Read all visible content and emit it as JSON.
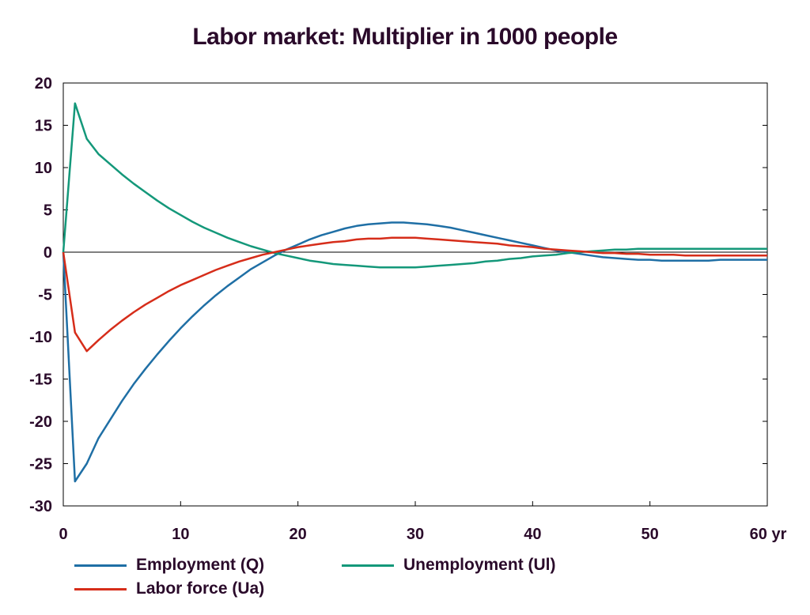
{
  "chart_data": {
    "type": "line",
    "title": "Labor market: Multiplier in 1000 people",
    "xlabel": "",
    "ylabel": "",
    "xlim": [
      0,
      60
    ],
    "ylim": [
      -30,
      20
    ],
    "x_ticks": [
      0,
      10,
      20,
      30,
      40,
      50,
      60
    ],
    "x_tick_labels": [
      "0",
      "10",
      "20",
      "30",
      "40",
      "50",
      "60 yr"
    ],
    "y_ticks": [
      20,
      15,
      10,
      5,
      0,
      -5,
      -10,
      -15,
      -20,
      -25,
      -30
    ],
    "y_tick_labels": [
      "20",
      "15",
      "10",
      "5",
      "0",
      "-5",
      "-10",
      "-15",
      "-20",
      "-25",
      "-30"
    ],
    "grid": false,
    "zero_line": true,
    "legend_position": "bottom",
    "series": [
      {
        "name": "Employment (Q)",
        "color": "#1f6fa5",
        "x": [
          0,
          1,
          2,
          3,
          4,
          5,
          6,
          7,
          8,
          9,
          10,
          11,
          12,
          13,
          14,
          15,
          16,
          17,
          18,
          19,
          20,
          21,
          22,
          23,
          24,
          25,
          26,
          27,
          28,
          29,
          30,
          31,
          32,
          33,
          34,
          35,
          36,
          37,
          38,
          39,
          40,
          41,
          42,
          43,
          44,
          45,
          46,
          47,
          48,
          49,
          50,
          51,
          52,
          53,
          54,
          55,
          56,
          57,
          58,
          59,
          60
        ],
        "values": [
          0,
          -27.1,
          -25.0,
          -22.0,
          -19.8,
          -17.6,
          -15.6,
          -13.8,
          -12.1,
          -10.5,
          -9.0,
          -7.6,
          -6.3,
          -5.1,
          -4.0,
          -3.0,
          -2.0,
          -1.2,
          -0.4,
          0.3,
          0.9,
          1.5,
          2.0,
          2.4,
          2.8,
          3.1,
          3.3,
          3.4,
          3.5,
          3.5,
          3.4,
          3.3,
          3.1,
          2.9,
          2.6,
          2.3,
          2.0,
          1.7,
          1.4,
          1.1,
          0.8,
          0.5,
          0.2,
          0.0,
          -0.2,
          -0.4,
          -0.6,
          -0.7,
          -0.8,
          -0.9,
          -0.9,
          -1.0,
          -1.0,
          -1.0,
          -1.0,
          -1.0,
          -0.9,
          -0.9,
          -0.9,
          -0.9,
          -0.9
        ]
      },
      {
        "name": "Unemployment (Ul)",
        "color": "#14987a",
        "x": [
          0,
          1,
          2,
          3,
          4,
          5,
          6,
          7,
          8,
          9,
          10,
          11,
          12,
          13,
          14,
          15,
          16,
          17,
          18,
          19,
          20,
          21,
          22,
          23,
          24,
          25,
          26,
          27,
          28,
          29,
          30,
          31,
          32,
          33,
          34,
          35,
          36,
          37,
          38,
          39,
          40,
          41,
          42,
          43,
          44,
          45,
          46,
          47,
          48,
          49,
          50,
          51,
          52,
          53,
          54,
          55,
          56,
          57,
          58,
          59,
          60
        ],
        "values": [
          0,
          17.6,
          13.4,
          11.6,
          10.4,
          9.2,
          8.1,
          7.1,
          6.1,
          5.2,
          4.4,
          3.6,
          2.9,
          2.3,
          1.7,
          1.2,
          0.7,
          0.3,
          -0.1,
          -0.4,
          -0.7,
          -1.0,
          -1.2,
          -1.4,
          -1.5,
          -1.6,
          -1.7,
          -1.8,
          -1.8,
          -1.8,
          -1.8,
          -1.7,
          -1.6,
          -1.5,
          -1.4,
          -1.3,
          -1.1,
          -1.0,
          -0.8,
          -0.7,
          -0.5,
          -0.4,
          -0.3,
          -0.1,
          0.0,
          0.1,
          0.2,
          0.3,
          0.3,
          0.4,
          0.4,
          0.4,
          0.4,
          0.4,
          0.4,
          0.4,
          0.4,
          0.4,
          0.4,
          0.4,
          0.4
        ]
      },
      {
        "name": "Labor force (Ua)",
        "color": "#d62d1a",
        "x": [
          0,
          1,
          2,
          3,
          4,
          5,
          6,
          7,
          8,
          9,
          10,
          11,
          12,
          13,
          14,
          15,
          16,
          17,
          18,
          19,
          20,
          21,
          22,
          23,
          24,
          25,
          26,
          27,
          28,
          29,
          30,
          31,
          32,
          33,
          34,
          35,
          36,
          37,
          38,
          39,
          40,
          41,
          42,
          43,
          44,
          45,
          46,
          47,
          48,
          49,
          50,
          51,
          52,
          53,
          54,
          55,
          56,
          57,
          58,
          59,
          60
        ],
        "values": [
          0,
          -9.5,
          -11.7,
          -10.4,
          -9.2,
          -8.1,
          -7.1,
          -6.2,
          -5.4,
          -4.6,
          -3.9,
          -3.3,
          -2.7,
          -2.1,
          -1.6,
          -1.1,
          -0.7,
          -0.3,
          0.0,
          0.3,
          0.6,
          0.8,
          1.0,
          1.2,
          1.3,
          1.5,
          1.6,
          1.6,
          1.7,
          1.7,
          1.7,
          1.6,
          1.5,
          1.4,
          1.3,
          1.2,
          1.1,
          1.0,
          0.8,
          0.7,
          0.6,
          0.4,
          0.3,
          0.2,
          0.1,
          0.0,
          -0.1,
          -0.1,
          -0.2,
          -0.2,
          -0.3,
          -0.3,
          -0.3,
          -0.4,
          -0.4,
          -0.4,
          -0.4,
          -0.4,
          -0.4,
          -0.4,
          -0.4
        ]
      }
    ]
  }
}
